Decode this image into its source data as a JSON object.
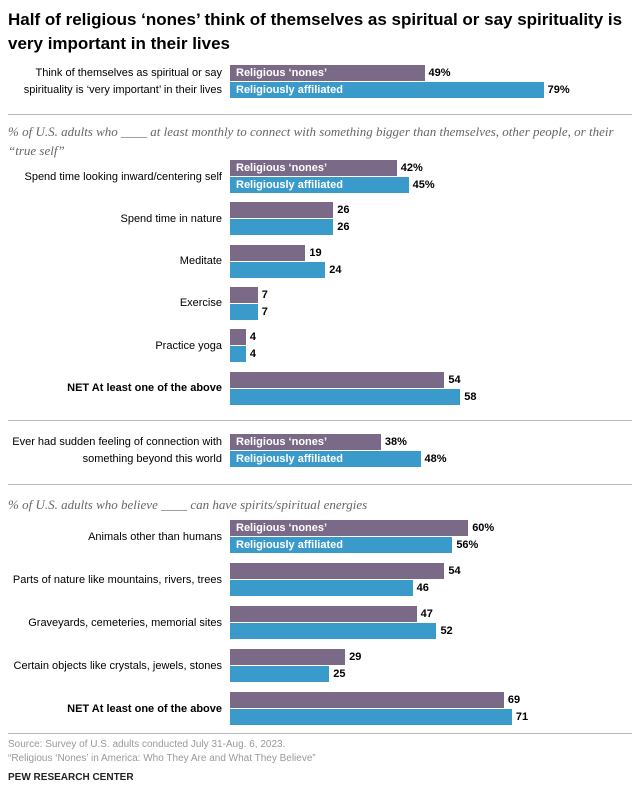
{
  "chart_data": [
    {
      "type": "bar",
      "orientation": "horizontal",
      "title": "Half of religious ‘nones’ think of themselves as spiritual or say spirituality is very important in their lives",
      "categories": [
        "Think of themselves as spiritual or say spirituality is ‘very important’ in their lives"
      ],
      "series": [
        {
          "name": "Religious ‘nones’",
          "color": "#7a6a87",
          "values": [
            49
          ],
          "value_labels": [
            "49%"
          ]
        },
        {
          "name": "Religiously affiliated",
          "color": "#3a9bcb",
          "values": [
            79
          ],
          "value_labels": [
            "79%"
          ]
        }
      ]
    },
    {
      "type": "bar",
      "orientation": "horizontal",
      "subtitle": "% of U.S. adults who ____ at least monthly to connect with something bigger than themselves, other people, or their “true self”",
      "categories": [
        "Spend time looking inward/centering self",
        "Spend time in nature",
        "Meditate",
        "Exercise",
        "Practice yoga",
        "NET At least one of the above"
      ],
      "series": [
        {
          "name": "Religious ‘nones’",
          "color": "#7a6a87",
          "values": [
            42,
            26,
            19,
            7,
            4,
            54
          ],
          "value_labels": [
            "42%",
            "26",
            "19",
            "7",
            "4",
            "54"
          ]
        },
        {
          "name": "Religiously affiliated",
          "color": "#3a9bcb",
          "values": [
            45,
            26,
            24,
            7,
            4,
            58
          ],
          "value_labels": [
            "45%",
            "26",
            "24",
            "7",
            "4",
            "58"
          ]
        }
      ]
    },
    {
      "type": "bar",
      "orientation": "horizontal",
      "categories": [
        "Ever had sudden feeling of connection with something beyond this world"
      ],
      "series": [
        {
          "name": "Religious ‘nones’",
          "color": "#7a6a87",
          "values": [
            38
          ],
          "value_labels": [
            "38%"
          ]
        },
        {
          "name": "Religiously affiliated",
          "color": "#3a9bcb",
          "values": [
            48
          ],
          "value_labels": [
            "48%"
          ]
        }
      ]
    },
    {
      "type": "bar",
      "orientation": "horizontal",
      "subtitle": "% of U.S. adults who believe ____ can have spirits/spiritual energies",
      "categories": [
        "Animals other than humans",
        "Parts of nature like mountains, rivers, trees",
        "Graveyards, cemeteries, memorial sites",
        "Certain objects like crystals, jewels, stones",
        "NET At least one of the above"
      ],
      "series": [
        {
          "name": "Religious ‘nones’",
          "color": "#7a6a87",
          "values": [
            60,
            54,
            47,
            29,
            69
          ],
          "value_labels": [
            "60%",
            "54",
            "47",
            "29",
            "69"
          ]
        },
        {
          "name": "Religiously affiliated",
          "color": "#3a9bcb",
          "values": [
            56,
            46,
            52,
            25,
            71
          ],
          "value_labels": [
            "56%",
            "46",
            "52",
            "25",
            "71"
          ]
        }
      ]
    }
  ],
  "footer": {
    "source": "Source: Survey of U.S. adults conducted July 31-Aug. 6, 2023.",
    "report": "“Religious ‘Nones’ in America: Who They Are and What They Believe”",
    "credit": "PEW RESEARCH CENTER"
  }
}
